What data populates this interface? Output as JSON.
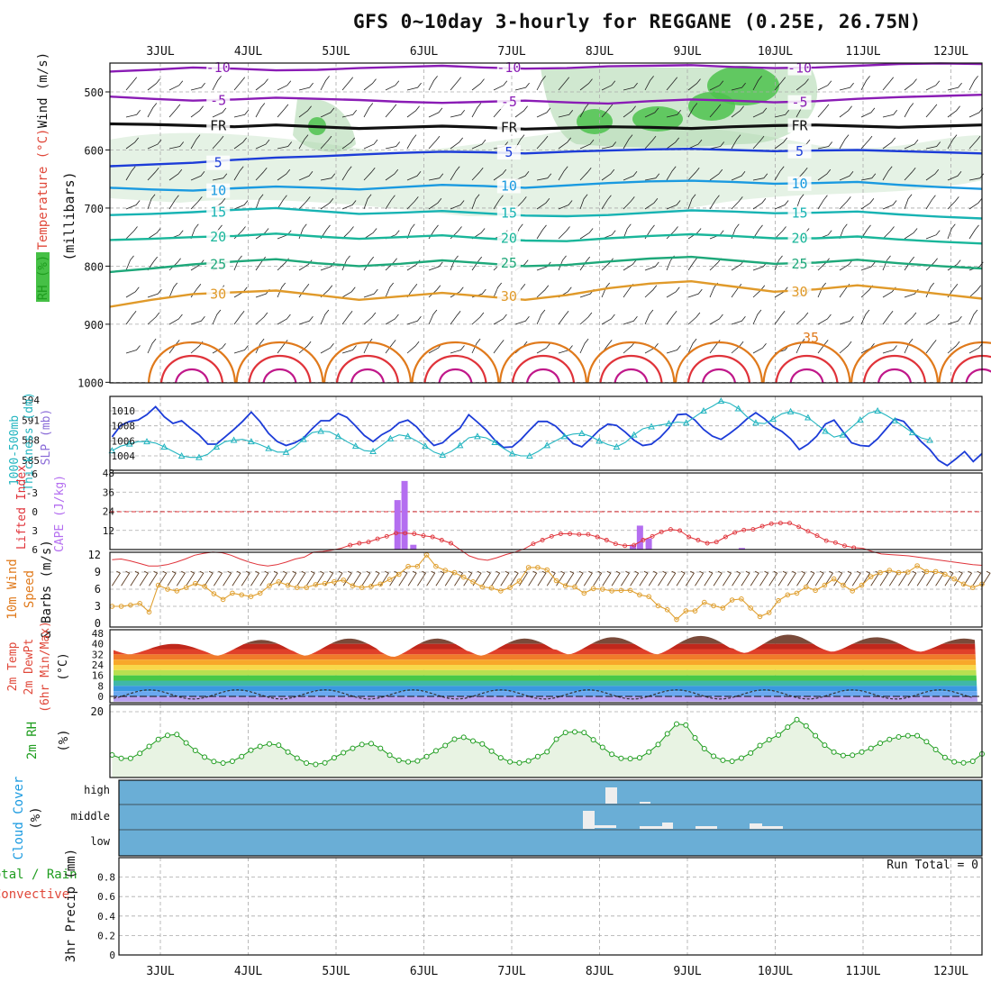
{
  "title": "GFS 0~10day 3-hourly for REGGANE (0.25E, 26.75N)",
  "chart_data": [
    {
      "type": "line",
      "name": "upper-air cross section",
      "ylabel": "(millibars)",
      "ylabel_parts": [
        {
          "text": "RH (%)",
          "color": "#1f9d1f"
        },
        {
          "text": "Temperature (°C)",
          "color": "#e0483a"
        },
        {
          "text": "Wind (m/s)",
          "color": "#111111"
        }
      ],
      "ylim": [
        1000,
        450
      ],
      "yticks": [
        500,
        600,
        700,
        800,
        900,
        1000
      ],
      "x_dates": [
        "3JUL",
        "4JUL",
        "5JUL",
        "6JUL",
        "7JUL",
        "8JUL",
        "9JUL",
        "10JUL",
        "11JUL",
        "12JUL"
      ],
      "isotherms": [
        {
          "value": -10,
          "label": "-10",
          "color": "#8a1cb5",
          "p": [
            465,
            462,
            458,
            460,
            463,
            462,
            459,
            457,
            455,
            458,
            460,
            459,
            456,
            455,
            454,
            457,
            459,
            458,
            455,
            452,
            451,
            452
          ]
        },
        {
          "value": -5,
          "label": "-5",
          "color": "#8a1cb5",
          "p": [
            508,
            512,
            515,
            513,
            510,
            512,
            514,
            517,
            519,
            517,
            515,
            518,
            520,
            516,
            513,
            515,
            518,
            516,
            512,
            509,
            507,
            505
          ]
        },
        {
          "value": 0,
          "label": "FR",
          "color": "#111111",
          "p": [
            555,
            556,
            558,
            560,
            557,
            560,
            563,
            561,
            559,
            561,
            564,
            562,
            560,
            561,
            563,
            560,
            558,
            557,
            559,
            561,
            559,
            557
          ]
        },
        {
          "value": 5,
          "label": "5",
          "color": "#1c3cd8",
          "p": [
            628,
            625,
            622,
            617,
            613,
            611,
            608,
            605,
            603,
            604,
            606,
            603,
            601,
            599,
            598,
            600,
            602,
            601,
            600,
            602,
            604,
            606
          ]
        },
        {
          "value": 10,
          "label": "10",
          "color": "#1a9ae0",
          "p": [
            665,
            668,
            670,
            666,
            663,
            665,
            668,
            664,
            660,
            662,
            665,
            661,
            657,
            654,
            653,
            655,
            658,
            657,
            655,
            660,
            664,
            667
          ]
        },
        {
          "value": 15,
          "label": "15",
          "color": "#17b3b3",
          "p": [
            712,
            710,
            707,
            703,
            700,
            705,
            710,
            708,
            705,
            709,
            713,
            714,
            712,
            708,
            704,
            706,
            709,
            708,
            706,
            711,
            715,
            718
          ]
        },
        {
          "value": 20,
          "label": "20",
          "color": "#19b69a",
          "p": [
            755,
            753,
            750,
            748,
            744,
            749,
            753,
            750,
            747,
            752,
            756,
            757,
            752,
            748,
            745,
            748,
            752,
            752,
            749,
            754,
            758,
            761
          ]
        },
        {
          "value": 25,
          "label": "25",
          "color": "#1ea87a",
          "p": [
            810,
            804,
            797,
            792,
            788,
            795,
            800,
            796,
            790,
            795,
            800,
            798,
            792,
            787,
            784,
            790,
            796,
            794,
            789,
            795,
            800,
            804
          ]
        },
        {
          "value": 30,
          "label": "30",
          "color": "#e09a2a",
          "p": [
            870,
            858,
            848,
            845,
            842,
            850,
            858,
            852,
            846,
            852,
            858,
            850,
            838,
            830,
            826,
            835,
            844,
            840,
            833,
            840,
            848,
            856
          ]
        }
      ],
      "isotherm_labels_extra": [
        "35"
      ]
    },
    {
      "type": "line",
      "name": "thickness and SLP",
      "ylabel_left": "1000-500mb Thickness (dm)",
      "ylabel_right": "SLP (mb)",
      "thickness_ticks": [
        585,
        588,
        591,
        594
      ],
      "slp_ticks": [
        1004,
        1006,
        1008,
        1010
      ],
      "series": [
        {
          "name": "1000-500mb Thickness (dm)",
          "color": "#1c3cd8",
          "values": [
            588.5,
            590.2,
            590.8,
            591.0,
            591.8,
            593.0,
            591.5,
            590.5,
            590.9,
            589.8,
            588.8,
            587.4,
            587.4,
            588.5,
            589.6,
            590.8,
            592.2,
            590.8,
            589.0,
            587.8,
            587.2,
            587.6,
            588.3,
            589.7,
            590.9,
            590.9,
            592.0,
            591.4,
            590.1,
            588.7,
            587.8,
            588.8,
            589.5,
            590.6,
            591.0,
            590.0,
            588.5,
            587.2,
            587.6,
            588.8,
            589.8,
            591.8,
            590.7,
            589.5,
            588.0,
            586.9,
            587.0,
            588.1,
            589.5,
            590.8,
            590.8,
            590.1,
            588.8,
            587.5,
            587.0,
            588.2,
            589.5,
            590.4,
            590.2,
            589.2,
            588.0,
            587.2,
            587.4,
            588.4,
            589.8,
            591.8,
            591.9,
            591.0,
            589.6,
            588.6,
            588.1,
            589.0,
            590.0,
            591.2,
            592.1,
            591.2,
            590.0,
            589.3,
            588.2,
            586.6,
            587.4,
            588.6,
            590.4,
            591.0,
            589.3,
            587.6,
            587.2,
            587.1,
            588.2,
            589.7,
            591.2,
            590.8,
            589.3,
            587.8,
            586.6,
            585.0,
            584.2,
            585.2,
            586.3,
            584.8,
            586.0
          ]
        },
        {
          "name": "SLP (mb)",
          "color": "#22b5c0",
          "values": [
            1004.7,
            1005.3,
            1005.6,
            1005.9,
            1005.9,
            1005.7,
            1005.2,
            1004.6,
            1004.0,
            1003.8,
            1003.8,
            1004.2,
            1005.2,
            1005.9,
            1006.1,
            1006.2,
            1005.9,
            1005.5,
            1005.0,
            1004.5,
            1004.5,
            1005.2,
            1006.2,
            1007.1,
            1007.3,
            1007.2,
            1006.6,
            1005.9,
            1005.3,
            1004.7,
            1004.6,
            1005.4,
            1006.3,
            1006.8,
            1006.6,
            1006.0,
            1005.3,
            1004.5,
            1004.1,
            1004.6,
            1005.4,
            1006.4,
            1006.6,
            1006.4,
            1005.8,
            1005.0,
            1004.3,
            1004.0,
            1004.0,
            1004.6,
            1005.4,
            1006.0,
            1006.6,
            1006.9,
            1007.0,
            1006.6,
            1006.0,
            1005.5,
            1005.2,
            1005.8,
            1006.8,
            1007.6,
            1007.9,
            1008.1,
            1008.3,
            1008.5,
            1008.4,
            1009.2,
            1010.0,
            1010.6,
            1011.3,
            1011.0,
            1010.3,
            1009.2,
            1008.4,
            1008.3,
            1008.9,
            1009.6,
            1009.9,
            1009.6,
            1009.1,
            1008.2,
            1007.3,
            1006.5,
            1006.8,
            1007.8,
            1008.8,
            1009.7,
            1010.0,
            1009.4,
            1008.7,
            1007.9,
            1007.1,
            1006.4,
            1006.1
          ]
        }
      ]
    },
    {
      "type": "bar",
      "name": "CAPE and Lifted Index",
      "ylabel_left": "Lifted Index",
      "ylabel_right": "CAPE (J/kg)",
      "cape_ticks": [
        12,
        24,
        36,
        48
      ],
      "li_ticks": [
        -6,
        -3,
        0,
        3,
        6
      ],
      "li_tick_labels": [
        "-6",
        "-3",
        "0",
        "3",
        "6"
      ],
      "cape_bars": [
        {
          "x": 2.7,
          "value": 31
        },
        {
          "x": 2.78,
          "value": 43
        },
        {
          "x": 2.88,
          "value": 3
        },
        {
          "x": 5.38,
          "value": 3
        },
        {
          "x": 5.46,
          "value": 15
        },
        {
          "x": 5.56,
          "value": 7
        },
        {
          "x": 6.62,
          "value": 1
        }
      ],
      "lifted_index": [
        7.6,
        7.5,
        7.8,
        8.2,
        8.6,
        8.6,
        8.4,
        8.0,
        7.5,
        6.9,
        6.6,
        6.4,
        6.5,
        6.9,
        7.5,
        8.0,
        8.4,
        8.6,
        8.4,
        8.0,
        7.5,
        7.2,
        6.4,
        6.3,
        6.1,
        5.8,
        5.3,
        5.0,
        4.8,
        4.3,
        3.9,
        3.4,
        3.4,
        3.5,
        3.8,
        4.0,
        4.5,
        5.0,
        6.0,
        7.0,
        7.5,
        7.7,
        7.3,
        6.8,
        6.4,
        5.9,
        5.1,
        4.5,
        3.9,
        3.5,
        3.5,
        3.6,
        3.6,
        4.0,
        4.5,
        5.1,
        5.4,
        5.3,
        4.5,
        3.9,
        3.2,
        2.8,
        3.0,
        4.0,
        4.5,
        5.0,
        4.8,
        4.0,
        3.3,
        2.9,
        2.8,
        2.3,
        1.9,
        1.8,
        1.8,
        2.4,
        3.1,
        3.8,
        4.6,
        4.9,
        5.4,
        5.7,
        5.8,
        6.3,
        6.7,
        6.8,
        6.9,
        7.0,
        7.2,
        7.4,
        7.6,
        7.8,
        8.0,
        8.2,
        8.4,
        8.5
      ]
    },
    {
      "type": "line",
      "name": "10m wind speed",
      "ylabel": "10m Wind Speed & Barbs (m/s)",
      "yticks": [
        0,
        3,
        6,
        9,
        12
      ],
      "values": [
        3.0,
        3.0,
        3.2,
        3.5,
        2.0,
        6.7,
        6.0,
        5.7,
        6.3,
        7.0,
        6.5,
        5.2,
        4.2,
        5.3,
        5.0,
        4.7,
        5.3,
        6.6,
        7.3,
        6.7,
        6.3,
        6.3,
        6.8,
        7.0,
        7.3,
        7.6,
        6.6,
        6.3,
        6.5,
        6.9,
        7.7,
        8.6,
        10.0,
        10.0,
        12.0,
        10.0,
        9.3,
        8.9,
        8.1,
        7.3,
        6.4,
        6.2,
        5.7,
        6.3,
        7.4,
        9.8,
        9.8,
        9.4,
        7.5,
        6.6,
        6.4,
        5.3,
        6.1,
        6.0,
        5.7,
        5.8,
        5.8,
        5.0,
        4.7,
        3.1,
        2.4,
        0.7,
        2.2,
        2.2,
        3.7,
        3.1,
        2.7,
        4.1,
        4.3,
        2.7,
        1.2,
        1.9,
        4.0,
        5.0,
        5.3,
        6.4,
        5.8,
        6.7,
        7.8,
        6.7,
        5.7,
        6.7,
        8.2,
        8.9,
        9.3,
        8.9,
        9.0,
        10.1,
        9.1,
        9.1,
        8.6,
        7.8,
        6.9,
        6.3,
        6.9
      ]
    },
    {
      "type": "area",
      "name": "2m temperature and dew point",
      "ylabel": "2m Temp 2m DewPt (6hr Min/Max) (°C)",
      "yticks": [
        0,
        8,
        16,
        24,
        32,
        40,
        48
      ],
      "temp_max_daily": [
        40,
        43,
        44,
        44,
        44,
        45,
        46,
        47,
        45,
        44
      ],
      "temp_min_daily": [
        32,
        31,
        31,
        30,
        31,
        32,
        32,
        33,
        34,
        34
      ],
      "dewpoint_range": [
        -2,
        5
      ]
    },
    {
      "type": "line",
      "name": "2m relative humidity",
      "ylabel": "2m RH (%)",
      "yticks": [
        20
      ],
      "ylim": [
        0,
        22
      ],
      "values": [
        6.3,
        5.2,
        5.2,
        6.8,
        9.0,
        11.2,
        12.5,
        12.8,
        10.1,
        7.7,
        5.6,
        4.2,
        3.7,
        4.3,
        5.8,
        7.8,
        9.0,
        9.8,
        9.4,
        7.2,
        5.3,
        3.7,
        3.3,
        3.8,
        5.4,
        7.0,
        8.4,
        9.6,
        9.9,
        8.4,
        6.2,
        4.6,
        4.1,
        4.4,
        5.8,
        7.6,
        9.3,
        11.3,
        11.9,
        10.7,
        9.8,
        7.5,
        5.4,
        4.1,
        3.8,
        4.4,
        5.8,
        7.3,
        11.3,
        13.4,
        13.6,
        13.4,
        11.1,
        8.7,
        6.5,
        5.2,
        5.1,
        5.4,
        7.2,
        9.6,
        13.0,
        16.1,
        15.8,
        11.7,
        8.3,
        5.9,
        4.6,
        4.3,
        5.3,
        6.9,
        9.3,
        11.1,
        12.6,
        15.1,
        17.5,
        15.5,
        12.4,
        9.4,
        7.2,
        6.1,
        6.2,
        7.2,
        8.4,
        10.0,
        11.2,
        12.0,
        12.4,
        12.4,
        10.5,
        8.0,
        5.5,
        4.1,
        3.8,
        4.3,
        6.6
      ]
    },
    {
      "type": "bar",
      "name": "cloud cover",
      "ylabel": "Cloud Cover (%)",
      "levels": [
        "low",
        "middle",
        "high"
      ]
    },
    {
      "type": "bar",
      "name": "3hr precipitation",
      "ylabel": "3hr Precip (mm)",
      "ylabel_parts": [
        {
          "text": "Total / Rain",
          "color": "#1f9d1f"
        },
        {
          "text": "Convective",
          "color": "#e0483a"
        }
      ],
      "yticks": [
        0,
        0.2,
        0.4,
        0.6,
        0.8
      ],
      "ylim": [
        0,
        1.0
      ],
      "run_total_label": "Run Total = 0",
      "values": []
    }
  ]
}
